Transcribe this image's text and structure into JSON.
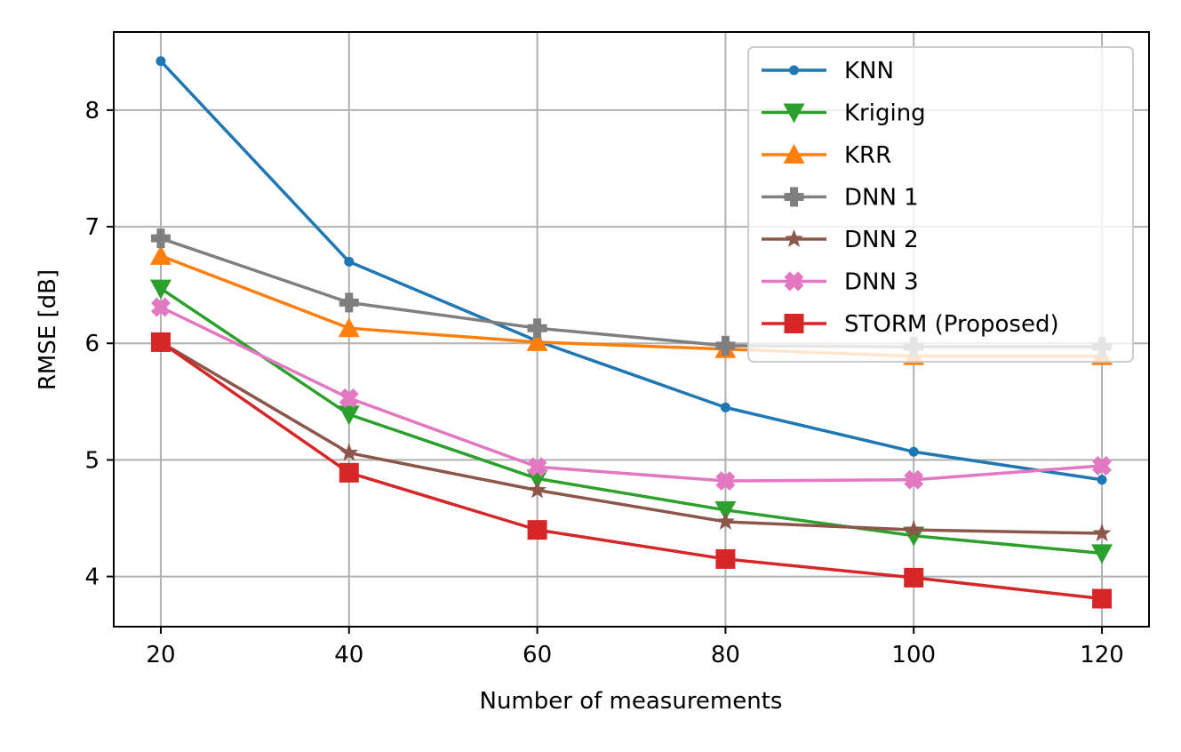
{
  "chart_data": {
    "type": "line",
    "title": "",
    "xlabel": "Number of measurements",
    "ylabel": "RMSE [dB]",
    "xlim": [
      15,
      125
    ],
    "ylim": [
      3.57,
      8.67
    ],
    "xticks": [
      20,
      40,
      60,
      80,
      100,
      120
    ],
    "yticks": [
      4,
      5,
      6,
      7,
      8
    ],
    "grid": true,
    "legend_position": "top-right",
    "x": [
      20,
      40,
      60,
      80,
      100,
      120
    ],
    "series": [
      {
        "name": "KNN",
        "color": "#1f77b4",
        "marker": "point",
        "values": [
          8.42,
          6.7,
          6.02,
          5.45,
          5.07,
          4.83
        ]
      },
      {
        "name": "Kriging",
        "color": "#2ca02c",
        "marker": "triangle-down",
        "values": [
          6.47,
          5.39,
          4.84,
          4.57,
          4.35,
          4.2
        ]
      },
      {
        "name": "KRR",
        "color": "#ff7f0e",
        "marker": "triangle-up",
        "values": [
          6.75,
          6.13,
          6.01,
          5.95,
          5.89,
          5.89
        ]
      },
      {
        "name": "DNN 1",
        "color": "#7f7f7f",
        "marker": "plus-filled",
        "values": [
          6.9,
          6.35,
          6.13,
          5.98,
          5.97,
          5.97
        ]
      },
      {
        "name": "DNN 2",
        "color": "#8c564b",
        "marker": "star",
        "values": [
          6.01,
          5.06,
          4.74,
          4.47,
          4.4,
          4.37
        ]
      },
      {
        "name": "DNN 3",
        "color": "#e377c2",
        "marker": "x-filled",
        "values": [
          6.31,
          5.53,
          4.94,
          4.82,
          4.83,
          4.95
        ]
      },
      {
        "name": "STORM (Proposed)",
        "color": "#d62728",
        "marker": "square",
        "values": [
          6.01,
          4.89,
          4.4,
          4.15,
          3.99,
          3.81
        ]
      }
    ]
  }
}
